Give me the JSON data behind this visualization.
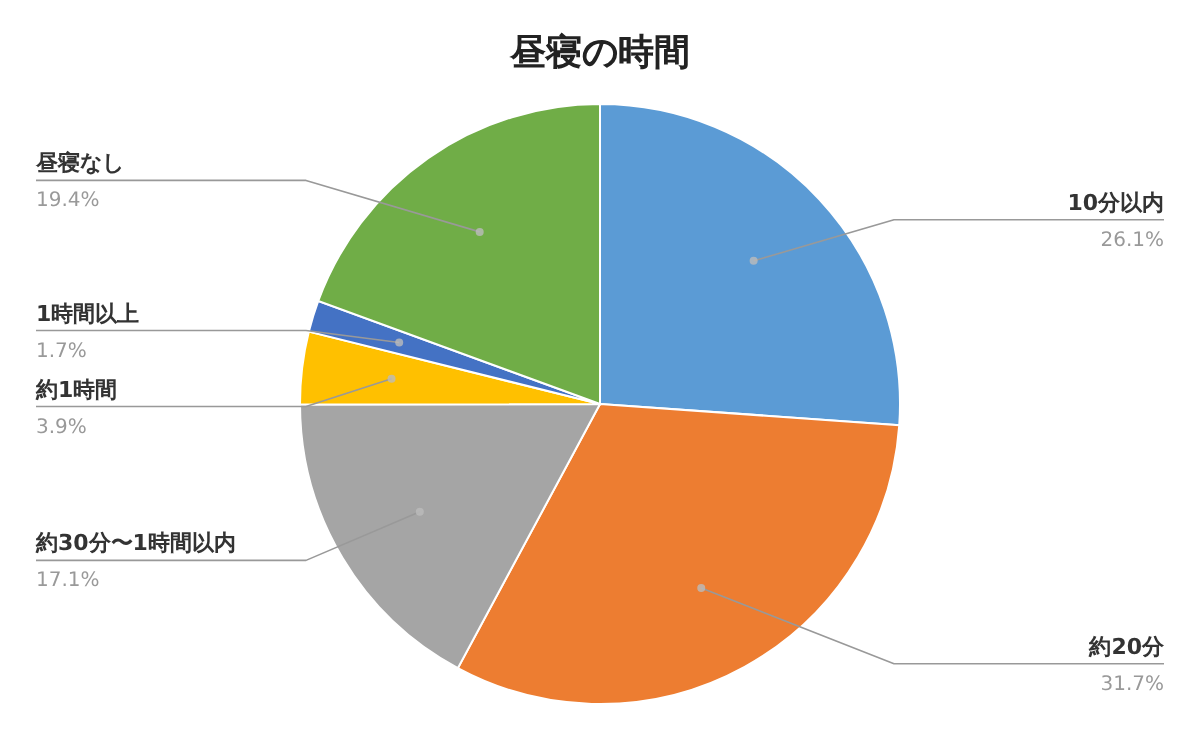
{
  "chart_data": {
    "type": "pie",
    "title": "昼寝の時間",
    "categories": [
      "10分以内",
      "約20分",
      "約30分〜1時間以内",
      "約1時間",
      "1時間以上",
      "昼寝なし"
    ],
    "values": [
      26.1,
      31.7,
      17.1,
      3.9,
      1.7,
      19.4
    ],
    "colors": [
      "#5b9bd5",
      "#ed7d31",
      "#a5a5a5",
      "#ffc000",
      "#4472c4",
      "#70ad47"
    ],
    "value_labels": [
      "26.1%",
      "31.7%",
      "17.1%",
      "3.9%",
      "1.7%",
      "19.4%"
    ]
  }
}
